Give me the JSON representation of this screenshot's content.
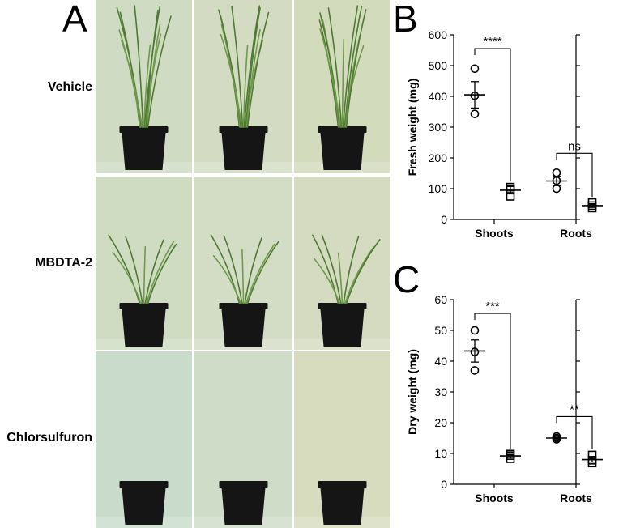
{
  "panels": {
    "a_letter": "A",
    "b_letter": "B",
    "c_letter": "C"
  },
  "photo_rows": [
    {
      "label": "Vehicle",
      "growth": "tall"
    },
    {
      "label": "MBDTA-2",
      "growth": "short"
    },
    {
      "label": "Chlorsulfuron",
      "growth": "none"
    }
  ],
  "photo_bg_colors": [
    [
      "#cfdbc3",
      "#d3dcc2",
      "#d3dbbd"
    ],
    [
      "#cfdcc2",
      "#d3dcc5",
      "#d4dbc0"
    ],
    [
      "#c9dccb",
      "#cfdcc8",
      "#d7dcbf"
    ]
  ],
  "colors": {
    "pot": "#151515",
    "leaf": "#6f9a4a",
    "leaf_dark": "#4f7a33",
    "separator": "#ffffff"
  },
  "chart_data": [
    {
      "id": "B",
      "type": "scatter",
      "ylabel": "Fresh weight (mg)",
      "ylim": [
        0,
        600
      ],
      "yticks": [
        0,
        100,
        200,
        300,
        400,
        500,
        600
      ],
      "categories": [
        "Shoots",
        "Roots"
      ],
      "groups": [
        {
          "category": "Shoots",
          "marker": "circle",
          "points": [
            490,
            402,
            343
          ],
          "mean": 405,
          "sem": 43
        },
        {
          "category": "Shoots",
          "marker": "square",
          "points": [
            105,
            98,
            75
          ],
          "mean": 95,
          "sem": 12
        },
        {
          "category": "Roots",
          "marker": "circle",
          "points": [
            152,
            126,
            100
          ],
          "mean": 125,
          "sem": 15
        },
        {
          "category": "Roots",
          "marker": "square",
          "points": [
            55,
            45,
            37
          ],
          "mean": 45,
          "sem": 6
        }
      ],
      "significance": [
        {
          "category": "Shoots",
          "label": "****",
          "y": 555
        },
        {
          "category": "Roots",
          "label": "ns",
          "y": 215
        }
      ]
    },
    {
      "id": "C",
      "type": "scatter",
      "ylabel": "Dry weight (mg)",
      "ylim": [
        0,
        60
      ],
      "yticks": [
        0,
        10,
        20,
        30,
        40,
        50,
        60
      ],
      "categories": [
        "Shoots",
        "Roots"
      ],
      "groups": [
        {
          "category": "Shoots",
          "marker": "circle",
          "points": [
            50,
            43,
            37
          ],
          "mean": 43.3,
          "sem": 3.6
        },
        {
          "category": "Shoots",
          "marker": "square",
          "points": [
            9.8,
            9.3,
            8.3
          ],
          "mean": 9.2,
          "sem": 0.5
        },
        {
          "category": "Roots",
          "marker": "circle",
          "points": [
            15.5,
            15.0,
            14.6
          ],
          "mean": 15.0,
          "sem": 0.3
        },
        {
          "category": "Roots",
          "marker": "square",
          "points": [
            9.5,
            7.8,
            6.9
          ],
          "mean": 8.0,
          "sem": 0.8
        }
      ],
      "significance": [
        {
          "category": "Shoots",
          "label": "***",
          "y": 55.5
        },
        {
          "category": "Roots",
          "label": "**",
          "y": 22
        }
      ]
    }
  ]
}
